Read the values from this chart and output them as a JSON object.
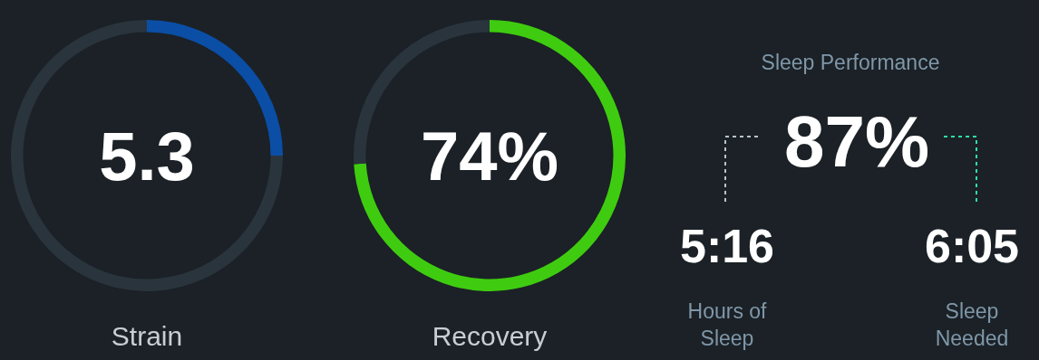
{
  "chart_data": [
    {
      "type": "donut",
      "title": "Strain",
      "categories": [
        null,
        null
      ],
      "values": [
        25,
        75
      ],
      "colors": [
        "#0b4ea6",
        "#2a343d"
      ],
      "annotations": [
        "5.3"
      ]
    },
    {
      "type": "donut",
      "title": "Recovery",
      "categories": [
        null,
        null
      ],
      "values": [
        74,
        26
      ],
      "colors": [
        "#3fcc10",
        "#2a343d"
      ],
      "annotations": [
        "74%"
      ]
    },
    {
      "type": "other",
      "title": "Sleep Performance",
      "annotations": [
        "87%",
        "5:16",
        "Hours of Sleep",
        "6:05",
        "Sleep Needed"
      ]
    }
  ]
}
